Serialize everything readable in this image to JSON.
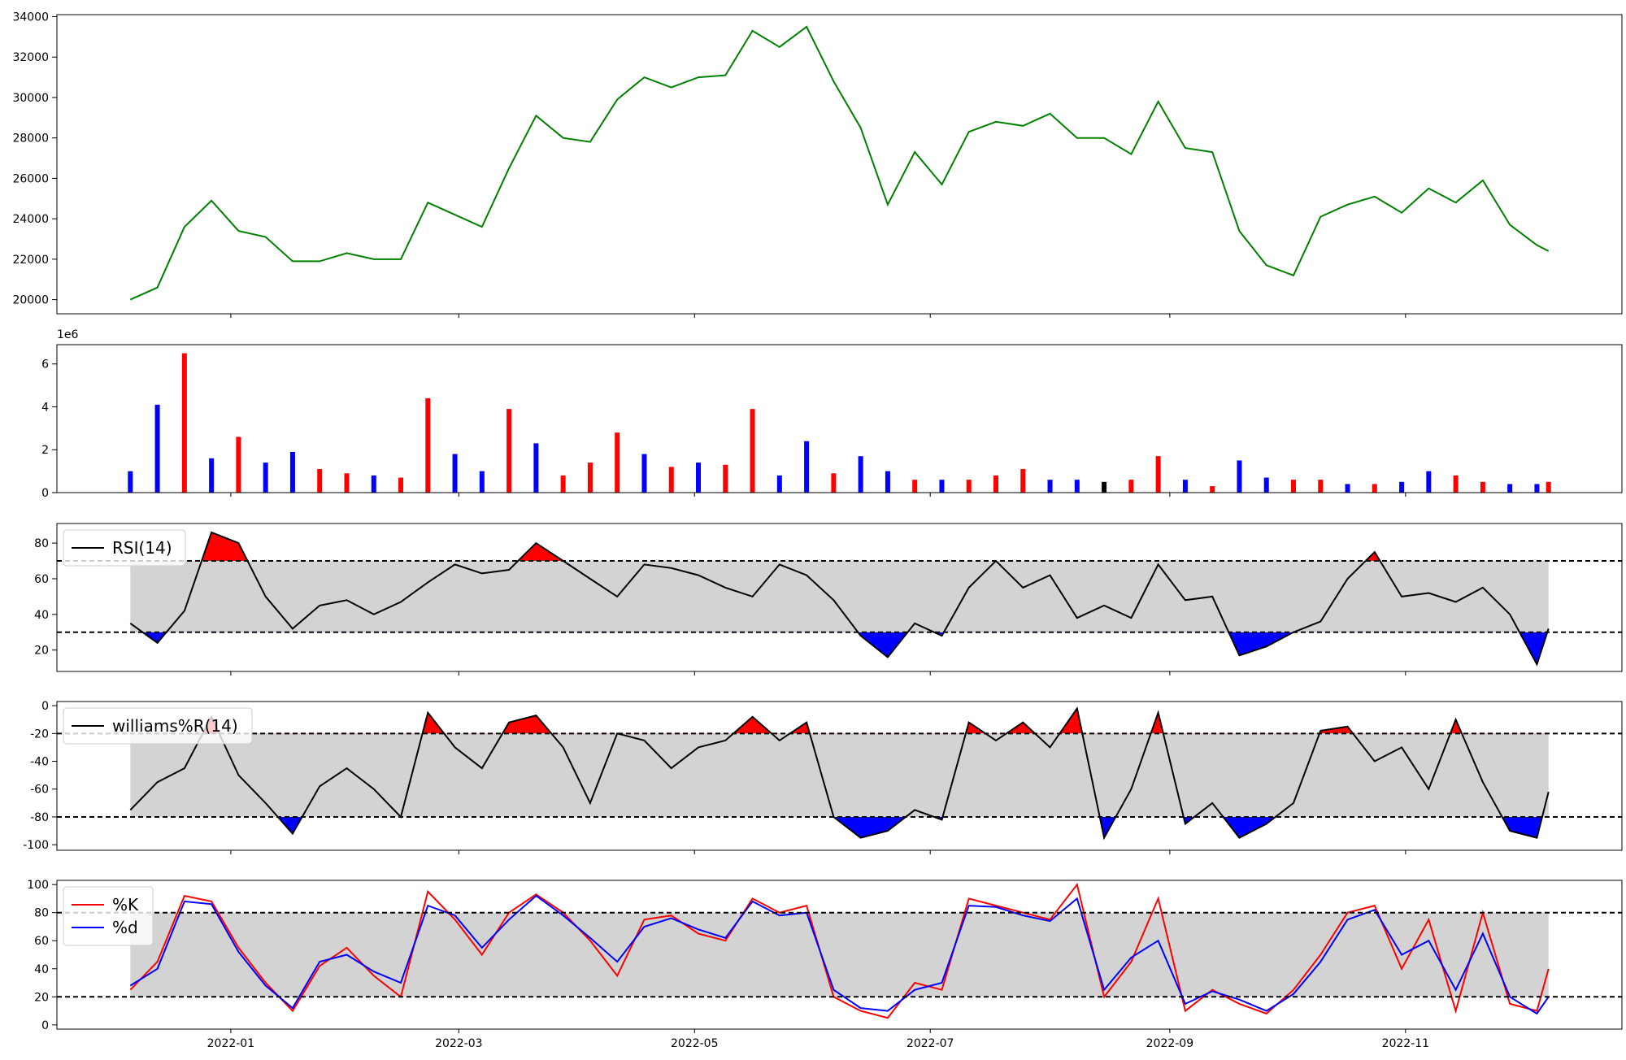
{
  "chart_data": [
    {
      "type": "line",
      "panel": "price",
      "title": "",
      "xlabel": "",
      "ylabel": "",
      "ylim": [
        19300,
        34100
      ],
      "yticks": [
        20000,
        22000,
        24000,
        26000,
        28000,
        30000,
        32000,
        34000
      ],
      "colors": {
        "line": "#008000"
      },
      "x": [
        "2021-12-06",
        "2021-12-13",
        "2021-12-20",
        "2021-12-27",
        "2022-01-03",
        "2022-01-10",
        "2022-01-17",
        "2022-01-24",
        "2022-01-31",
        "2022-02-07",
        "2022-02-14",
        "2022-02-21",
        "2022-02-28",
        "2022-03-07",
        "2022-03-14",
        "2022-03-21",
        "2022-03-28",
        "2022-04-04",
        "2022-04-11",
        "2022-04-18",
        "2022-04-25",
        "2022-05-02",
        "2022-05-09",
        "2022-05-16",
        "2022-05-23",
        "2022-05-30",
        "2022-06-06",
        "2022-06-13",
        "2022-06-20",
        "2022-06-27",
        "2022-07-04",
        "2022-07-11",
        "2022-07-18",
        "2022-07-25",
        "2022-08-01",
        "2022-08-08",
        "2022-08-15",
        "2022-08-22",
        "2022-08-29",
        "2022-09-05",
        "2022-09-12",
        "2022-09-19",
        "2022-09-26",
        "2022-10-03",
        "2022-10-10",
        "2022-10-17",
        "2022-10-24",
        "2022-10-31",
        "2022-11-07",
        "2022-11-14",
        "2022-11-21",
        "2022-11-28",
        "2022-12-05",
        "2022-12-08"
      ],
      "series": [
        {
          "values": [
            20000,
            20600,
            23600,
            24900,
            23400,
            23100,
            21900,
            21900,
            22300,
            22000,
            22000,
            24800,
            24200,
            23600,
            26500,
            29100,
            28000,
            27800,
            29900,
            31000,
            30500,
            31000,
            31100,
            33300,
            32500,
            33500,
            30800,
            28500,
            24700,
            27300,
            25700,
            28300,
            28800,
            28600,
            29200,
            28000,
            28000,
            27200,
            29800,
            27500,
            27300,
            23400,
            21700,
            21200,
            24100,
            24700,
            25100,
            24300,
            25500,
            24800,
            25900,
            23700,
            22700,
            22400
          ]
        }
      ]
    },
    {
      "type": "bar",
      "panel": "volume",
      "scale_label": "1e6",
      "ylim": [
        0,
        6.9
      ],
      "yticks": [
        0,
        2,
        4,
        6
      ],
      "colors": {
        "up": "#ff0000",
        "down": "#0000ff",
        "flat": "#000000"
      },
      "x": [
        "2021-12-06",
        "2021-12-13",
        "2021-12-20",
        "2021-12-27",
        "2022-01-03",
        "2022-01-10",
        "2022-01-17",
        "2022-01-24",
        "2022-01-31",
        "2022-02-07",
        "2022-02-14",
        "2022-02-21",
        "2022-02-28",
        "2022-03-07",
        "2022-03-14",
        "2022-03-21",
        "2022-03-28",
        "2022-04-04",
        "2022-04-11",
        "2022-04-18",
        "2022-04-25",
        "2022-05-02",
        "2022-05-09",
        "2022-05-16",
        "2022-05-23",
        "2022-05-30",
        "2022-06-06",
        "2022-06-13",
        "2022-06-20",
        "2022-06-27",
        "2022-07-04",
        "2022-07-11",
        "2022-07-18",
        "2022-07-25",
        "2022-08-01",
        "2022-08-08",
        "2022-08-15",
        "2022-08-22",
        "2022-08-29",
        "2022-09-05",
        "2022-09-12",
        "2022-09-19",
        "2022-09-26",
        "2022-10-03",
        "2022-10-10",
        "2022-10-17",
        "2022-10-24",
        "2022-10-31",
        "2022-11-07",
        "2022-11-14",
        "2022-11-21",
        "2022-11-28",
        "2022-12-05",
        "2022-12-08"
      ],
      "series": [
        {
          "values": [
            1.0,
            4.1,
            6.5,
            1.6,
            2.6,
            1.4,
            1.9,
            1.1,
            0.9,
            0.8,
            0.7,
            4.4,
            1.8,
            1.0,
            3.9,
            2.3,
            0.8,
            1.4,
            2.8,
            1.8,
            1.2,
            1.4,
            1.3,
            3.9,
            0.8,
            2.4,
            0.9,
            1.7,
            1.0,
            0.6,
            0.6,
            0.6,
            0.8,
            1.1,
            0.6,
            0.6,
            0.5,
            0.6,
            1.7,
            0.6,
            0.3,
            1.5,
            0.7,
            0.6,
            0.6,
            0.4,
            0.4,
            0.5,
            1.0,
            0.8,
            0.5,
            0.4,
            0.4,
            0.5
          ]
        },
        {
          "name_key": "direction",
          "values": [
            "down",
            "down",
            "up",
            "down",
            "up",
            "down",
            "down",
            "up",
            "up",
            "down",
            "up",
            "up",
            "down",
            "down",
            "up",
            "down",
            "up",
            "up",
            "up",
            "down",
            "up",
            "down",
            "up",
            "up",
            "down",
            "down",
            "up",
            "down",
            "down",
            "up",
            "down",
            "up",
            "up",
            "up",
            "down",
            "down",
            "flat",
            "up",
            "up",
            "down",
            "up",
            "down",
            "down",
            "up",
            "up",
            "down",
            "up",
            "down",
            "down",
            "up",
            "up",
            "down",
            "down",
            "up"
          ]
        }
      ]
    },
    {
      "type": "line",
      "panel": "rsi",
      "ylim": [
        8,
        91
      ],
      "yticks": [
        20,
        40,
        60,
        80
      ],
      "thresholds": [
        30,
        70
      ],
      "colors": {
        "line": "#000000",
        "overbought": "#ff0000",
        "oversold": "#0000ff",
        "band": "#d3d3d3"
      },
      "legend": {
        "loc": "upper-left",
        "entries": [
          "RSI(14)"
        ]
      },
      "x": [
        "2021-12-06",
        "2021-12-13",
        "2021-12-20",
        "2021-12-27",
        "2022-01-03",
        "2022-01-10",
        "2022-01-17",
        "2022-01-24",
        "2022-01-31",
        "2022-02-07",
        "2022-02-14",
        "2022-02-21",
        "2022-02-28",
        "2022-03-07",
        "2022-03-14",
        "2022-03-21",
        "2022-03-28",
        "2022-04-04",
        "2022-04-11",
        "2022-04-18",
        "2022-04-25",
        "2022-05-02",
        "2022-05-09",
        "2022-05-16",
        "2022-05-23",
        "2022-05-30",
        "2022-06-06",
        "2022-06-13",
        "2022-06-20",
        "2022-06-27",
        "2022-07-04",
        "2022-07-11",
        "2022-07-18",
        "2022-07-25",
        "2022-08-01",
        "2022-08-08",
        "2022-08-15",
        "2022-08-22",
        "2022-08-29",
        "2022-09-05",
        "2022-09-12",
        "2022-09-19",
        "2022-09-26",
        "2022-10-03",
        "2022-10-10",
        "2022-10-17",
        "2022-10-24",
        "2022-10-31",
        "2022-11-07",
        "2022-11-14",
        "2022-11-21",
        "2022-11-28",
        "2022-12-05",
        "2022-12-08"
      ],
      "series": [
        {
          "name": "RSI(14)",
          "values": [
            35,
            24,
            42,
            86,
            80,
            50,
            32,
            45,
            48,
            40,
            47,
            58,
            68,
            63,
            65,
            80,
            70,
            60,
            50,
            68,
            66,
            62,
            55,
            50,
            68,
            62,
            48,
            28,
            16,
            35,
            28,
            55,
            70,
            55,
            62,
            38,
            45,
            38,
            68,
            48,
            50,
            17,
            22,
            30,
            36,
            60,
            75,
            50,
            52,
            47,
            55,
            40,
            12,
            32
          ]
        }
      ]
    },
    {
      "type": "line",
      "panel": "williams",
      "ylim": [
        -104,
        3
      ],
      "yticks": [
        0,
        -20,
        -40,
        -60,
        -80,
        -100
      ],
      "thresholds": [
        -20,
        -80
      ],
      "colors": {
        "line": "#000000",
        "overbought": "#ff0000",
        "oversold": "#0000ff",
        "band": "#d3d3d3"
      },
      "legend": {
        "loc": "upper-left",
        "entries": [
          "williams%R(14)"
        ]
      },
      "x": [
        "2021-12-06",
        "2021-12-13",
        "2021-12-20",
        "2021-12-27",
        "2022-01-03",
        "2022-01-10",
        "2022-01-17",
        "2022-01-24",
        "2022-01-31",
        "2022-02-07",
        "2022-02-14",
        "2022-02-21",
        "2022-02-28",
        "2022-03-07",
        "2022-03-14",
        "2022-03-21",
        "2022-03-28",
        "2022-04-04",
        "2022-04-11",
        "2022-04-18",
        "2022-04-25",
        "2022-05-02",
        "2022-05-09",
        "2022-05-16",
        "2022-05-23",
        "2022-05-30",
        "2022-06-06",
        "2022-06-13",
        "2022-06-20",
        "2022-06-27",
        "2022-07-04",
        "2022-07-11",
        "2022-07-18",
        "2022-07-25",
        "2022-08-01",
        "2022-08-08",
        "2022-08-15",
        "2022-08-22",
        "2022-08-29",
        "2022-09-05",
        "2022-09-12",
        "2022-09-19",
        "2022-09-26",
        "2022-10-03",
        "2022-10-10",
        "2022-10-17",
        "2022-10-24",
        "2022-10-31",
        "2022-11-07",
        "2022-11-14",
        "2022-11-21",
        "2022-11-28",
        "2022-12-05",
        "2022-12-08"
      ],
      "series": [
        {
          "name": "williams%R(14)",
          "values": [
            -75,
            -55,
            -45,
            -8,
            -50,
            -70,
            -92,
            -58,
            -45,
            -60,
            -80,
            -5,
            -30,
            -45,
            -12,
            -7,
            -30,
            -70,
            -20,
            -25,
            -45,
            -30,
            -25,
            -8,
            -25,
            -12,
            -80,
            -95,
            -90,
            -75,
            -82,
            -12,
            -25,
            -12,
            -30,
            -2,
            -95,
            -60,
            -5,
            -85,
            -70,
            -95,
            -85,
            -70,
            -18,
            -15,
            -40,
            -30,
            -60,
            -10,
            -55,
            -90,
            -95,
            -62
          ]
        }
      ]
    },
    {
      "type": "line",
      "panel": "stochastic",
      "ylim": [
        -3,
        103
      ],
      "yticks": [
        0,
        20,
        40,
        60,
        80,
        100
      ],
      "thresholds": [
        20,
        80
      ],
      "colors": {
        "K": "#ff0000",
        "d": "#0000ff",
        "band": "#d3d3d3"
      },
      "legend": {
        "loc": "upper-left",
        "entries": [
          "%K",
          "%d"
        ]
      },
      "x": [
        "2021-12-06",
        "2021-12-13",
        "2021-12-20",
        "2021-12-27",
        "2022-01-03",
        "2022-01-10",
        "2022-01-17",
        "2022-01-24",
        "2022-01-31",
        "2022-02-07",
        "2022-02-14",
        "2022-02-21",
        "2022-02-28",
        "2022-03-07",
        "2022-03-14",
        "2022-03-21",
        "2022-03-28",
        "2022-04-04",
        "2022-04-11",
        "2022-04-18",
        "2022-04-25",
        "2022-05-02",
        "2022-05-09",
        "2022-05-16",
        "2022-05-23",
        "2022-05-30",
        "2022-06-06",
        "2022-06-13",
        "2022-06-20",
        "2022-06-27",
        "2022-07-04",
        "2022-07-11",
        "2022-07-18",
        "2022-07-25",
        "2022-08-01",
        "2022-08-08",
        "2022-08-15",
        "2022-08-22",
        "2022-08-29",
        "2022-09-05",
        "2022-09-12",
        "2022-09-19",
        "2022-09-26",
        "2022-10-03",
        "2022-10-10",
        "2022-10-17",
        "2022-10-24",
        "2022-10-31",
        "2022-11-07",
        "2022-11-14",
        "2022-11-21",
        "2022-11-28",
        "2022-12-05",
        "2022-12-08"
      ],
      "series": [
        {
          "name": "%K",
          "values": [
            25,
            45,
            92,
            88,
            55,
            30,
            10,
            42,
            55,
            35,
            20,
            95,
            75,
            50,
            80,
            93,
            80,
            60,
            35,
            75,
            78,
            65,
            60,
            90,
            80,
            85,
            20,
            10,
            5,
            30,
            25,
            90,
            85,
            80,
            75,
            100,
            20,
            45,
            90,
            10,
            25,
            15,
            8,
            25,
            50,
            80,
            85,
            40,
            75,
            10,
            80,
            15,
            10,
            40
          ]
        },
        {
          "name": "%d",
          "values": [
            28,
            40,
            88,
            86,
            52,
            28,
            12,
            45,
            50,
            38,
            30,
            85,
            78,
            55,
            75,
            92,
            78,
            62,
            45,
            70,
            76,
            68,
            62,
            88,
            78,
            80,
            25,
            12,
            10,
            25,
            30,
            85,
            84,
            78,
            74,
            90,
            25,
            48,
            60,
            15,
            24,
            18,
            10,
            22,
            45,
            75,
            82,
            50,
            60,
            25,
            65,
            20,
            8,
            20
          ]
        }
      ]
    },
    {
      "type": "axis",
      "panel": "shared-x",
      "xticks": [
        "2022-01",
        "2022-03",
        "2022-05",
        "2022-07",
        "2022-09",
        "2022-11"
      ]
    }
  ]
}
